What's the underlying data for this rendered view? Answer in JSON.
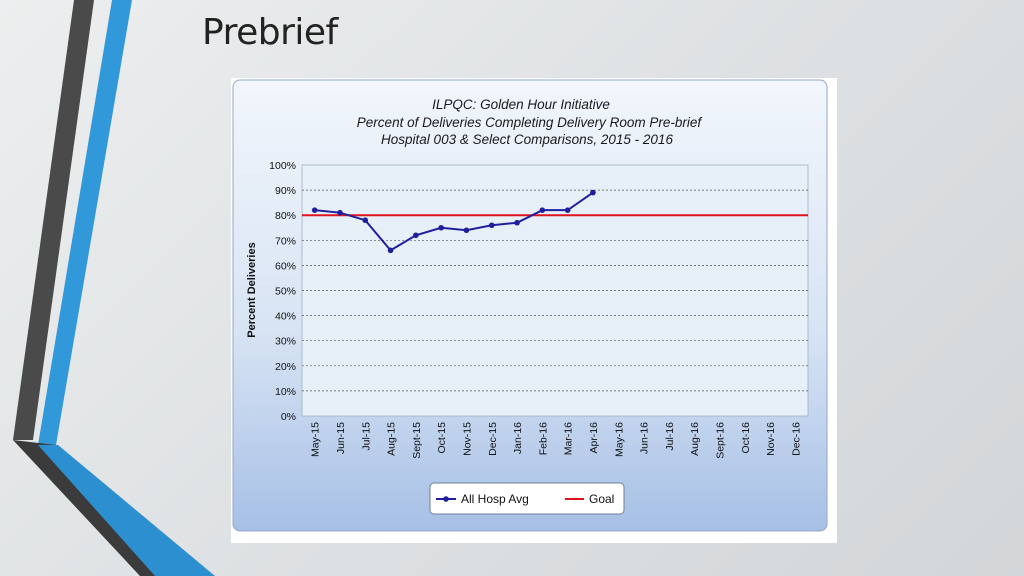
{
  "slide": {
    "title": "Prebrief"
  },
  "chart_data": {
    "type": "line",
    "title": "ILPQC: Golden Hour Initiative",
    "subtitle_lines": [
      "Percent of Deliveries Completing Delivery Room Pre-brief",
      "Hospital 003 & Select Comparisons, 2015 - 2016"
    ],
    "xlabel": "",
    "ylabel": "Percent Deliveries",
    "ylim": [
      0,
      100
    ],
    "y_ticks": [
      "0%",
      "10%",
      "20%",
      "30%",
      "40%",
      "50%",
      "60%",
      "70%",
      "80%",
      "90%",
      "100%"
    ],
    "categories": [
      "May-15",
      "Jun-15",
      "Jul-15",
      "Aug-15",
      "Sept-15",
      "Oct-15",
      "Nov-15",
      "Dec-15",
      "Jan-16",
      "Feb-16",
      "Mar-16",
      "Apr-16",
      "May-16",
      "Jun-16",
      "Jul-16",
      "Aug-16",
      "Sept-16",
      "Oct-16",
      "Nov-16",
      "Dec-16"
    ],
    "series": [
      {
        "name": "All Hosp Avg",
        "color": "#1f1f9e",
        "values": [
          82,
          81,
          78,
          66,
          72,
          75,
          74,
          76,
          77,
          82,
          82,
          89,
          null,
          null,
          null,
          null,
          null,
          null,
          null,
          null
        ]
      }
    ],
    "reference_lines": [
      {
        "name": "Goal",
        "value": 80,
        "color": "#e0141e"
      }
    ],
    "grid": true,
    "legend_position": "bottom-center"
  }
}
